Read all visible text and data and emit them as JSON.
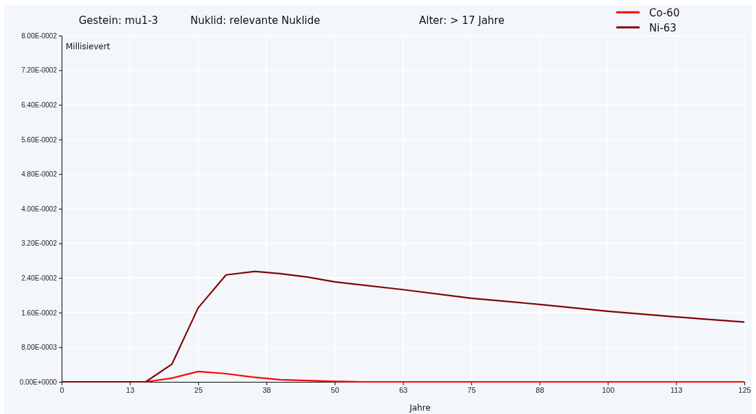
{
  "chart_data": {
    "type": "line",
    "title": "Gestein: mu1-3",
    "subtitle": "Nuklid: relevante Nuklide",
    "annotations": [
      "Alter: > 17 Jahre"
    ],
    "xlabel": "Jahre",
    "ylabel": "Millisievert",
    "xlim": [
      0,
      125
    ],
    "ylim": [
      0,
      0.08
    ],
    "xticks": [
      0,
      {
        "value": 12.5,
        "label": "13"
      },
      25,
      {
        "value": 37.5,
        "label": "38"
      },
      50,
      {
        "value": 62.5,
        "label": "63"
      },
      75,
      {
        "value": 87.5,
        "label": "88"
      },
      100,
      {
        "value": 112.5,
        "label": "113"
      },
      125
    ],
    "yticks": [
      {
        "value": 0,
        "label": "0.00E+0000"
      },
      {
        "value": 0.008,
        "label": "8.00E-0003"
      },
      {
        "value": 0.016,
        "label": "1.60E-0002"
      },
      {
        "value": 0.024,
        "label": "2.40E-0002"
      },
      {
        "value": 0.032,
        "label": "3.20E-0002"
      },
      {
        "value": 0.04,
        "label": "4.00E-0002"
      },
      {
        "value": 0.048,
        "label": "4.80E-0002"
      },
      {
        "value": 0.056,
        "label": "5.60E-0002"
      },
      {
        "value": 0.064,
        "label": "6.40E-0002"
      },
      {
        "value": 0.072,
        "label": "7.20E-0002"
      },
      {
        "value": 0.08,
        "label": "8.00E-0002"
      }
    ],
    "grid": true,
    "legend": "top right",
    "marker": "none",
    "line_style": "solid",
    "series": [
      {
        "name": "Co-60",
        "color": "#ff0000",
        "x": [
          0,
          15.4,
          20,
          25,
          30,
          35,
          40,
          45,
          50,
          55,
          125
        ],
        "values": [
          0,
          0,
          0.0008,
          0.0024,
          0.0019,
          0.0011,
          0.0005,
          0.0003,
          0.0001,
          0,
          0
        ]
      },
      {
        "name": "Ni-63",
        "color": "#800000",
        "x": [
          0,
          15.4,
          20.2,
          25,
          30.1,
          35.4,
          40,
          45,
          50,
          62.5,
          75,
          87.5,
          100,
          112.5,
          125
        ],
        "values": [
          0,
          0,
          0.0041,
          0.0171,
          0.0247,
          0.0255,
          0.025,
          0.0242,
          0.0231,
          0.0213,
          0.0193,
          0.0179,
          0.0163,
          0.015,
          0.0138
        ]
      }
    ]
  }
}
